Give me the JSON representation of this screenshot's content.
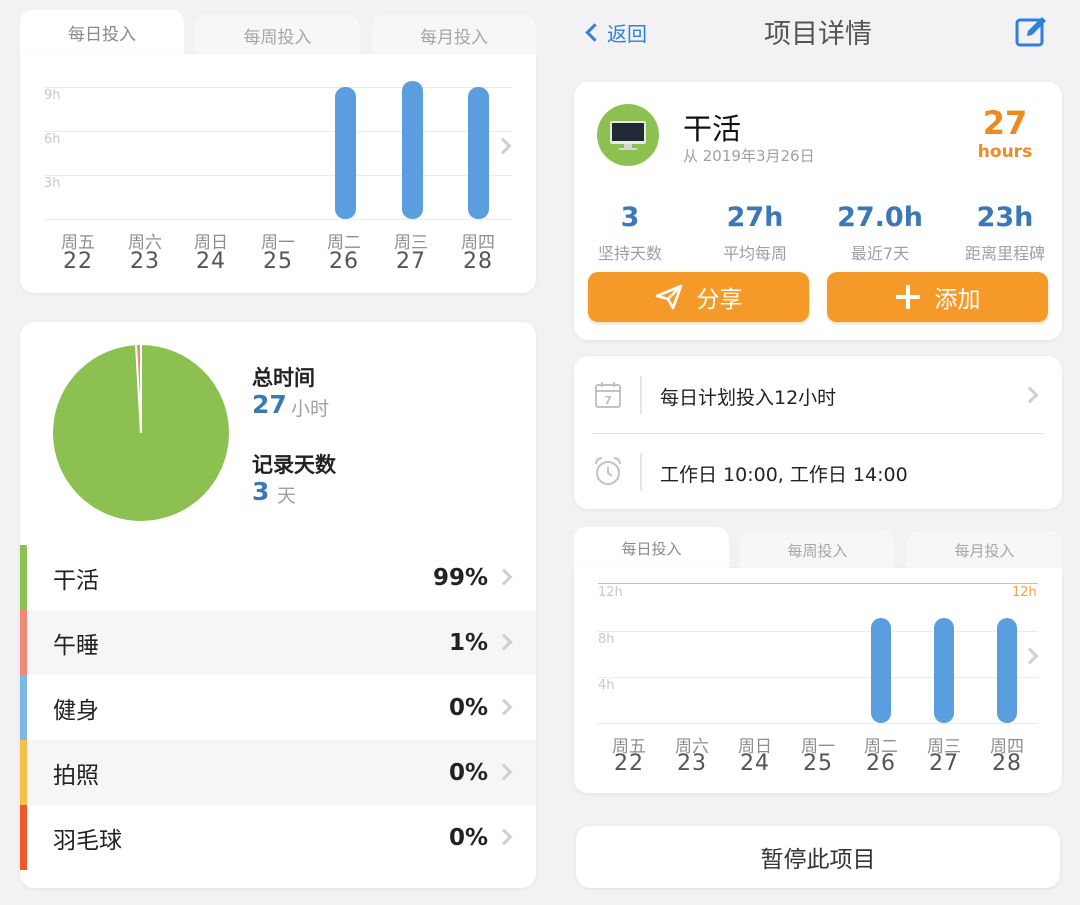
{
  "left": {
    "tabs": [
      {
        "label": "每日投入"
      },
      {
        "label": "每周投入"
      },
      {
        "label": "每月投入"
      }
    ],
    "chart": {
      "y_ticks": [
        "9h",
        "6h",
        "3h"
      ],
      "days": [
        {
          "name": "周五",
          "num": "22"
        },
        {
          "name": "周六",
          "num": "23"
        },
        {
          "name": "周日",
          "num": "24"
        },
        {
          "name": "周一",
          "num": "25"
        },
        {
          "name": "周二",
          "num": "26"
        },
        {
          "name": "周三",
          "num": "27"
        },
        {
          "name": "周四",
          "num": "28"
        }
      ]
    },
    "summary": {
      "total_label": "总时间",
      "total_value": "27",
      "total_unit": "小时",
      "days_label": "记录天数",
      "days_value": "3",
      "days_unit": "天"
    },
    "categories": [
      {
        "name": "干活",
        "pct": "99%",
        "color": "#8cc152"
      },
      {
        "name": "午睡",
        "pct": "1%",
        "color": "#f08a78"
      },
      {
        "name": "健身",
        "pct": "0%",
        "color": "#7cb8e8"
      },
      {
        "name": "拍照",
        "pct": "0%",
        "color": "#f5c04a"
      },
      {
        "name": "羽毛球",
        "pct": "0%",
        "color": "#ee5a2a"
      }
    ]
  },
  "right": {
    "nav": {
      "back_label": "返回",
      "title": "项目详情"
    },
    "project": {
      "name": "干活",
      "since": "从 2019年3月26日",
      "hours_value": "27",
      "hours_unit": "hours"
    },
    "stats": [
      {
        "value": "3",
        "label": "坚持天数"
      },
      {
        "value": "27h",
        "label": "平均每周"
      },
      {
        "value": "27.0h",
        "label": "最近7天"
      },
      {
        "value": "23h",
        "label": "距离里程碑"
      }
    ],
    "buttons": {
      "share": "分享",
      "add": "添加"
    },
    "plan": {
      "daily_plan": "每日计划投入12小时",
      "reminder": "工作日 10:00, 工作日 14:00",
      "calendar_icon_day": "7"
    },
    "tabs": [
      {
        "label": "每日投入"
      },
      {
        "label": "每周投入"
      },
      {
        "label": "每月投入"
      }
    ],
    "chart": {
      "y_ticks": [
        "12h",
        "8h",
        "4h"
      ],
      "target_label": "12h",
      "days": [
        {
          "name": "周五",
          "num": "22"
        },
        {
          "name": "周六",
          "num": "23"
        },
        {
          "name": "周日",
          "num": "24"
        },
        {
          "name": "周一",
          "num": "25"
        },
        {
          "name": "周二",
          "num": "26"
        },
        {
          "name": "周三",
          "num": "27"
        },
        {
          "name": "周四",
          "num": "28"
        }
      ]
    },
    "pause_label": "暂停此项目"
  },
  "chart_data": [
    {
      "type": "bar",
      "categories": [
        "周五 22",
        "周六 23",
        "周日 24",
        "周一 25",
        "周二 26",
        "周三 27",
        "周四 28"
      ],
      "values": [
        0,
        0,
        0,
        0,
        9,
        9.4,
        9
      ],
      "ylabel": "",
      "ylim": [
        0,
        9
      ],
      "y_unit": "h"
    },
    {
      "type": "pie",
      "categories": [
        "干活",
        "午睡"
      ],
      "values": [
        99,
        1
      ],
      "colors": [
        "#8cc152",
        "#f08a78"
      ]
    },
    {
      "type": "bar",
      "categories": [
        "周五 22",
        "周六 23",
        "周日 24",
        "周一 25",
        "周二 26",
        "周三 27",
        "周四 28"
      ],
      "values": [
        0,
        0,
        0,
        0,
        9,
        9,
        9
      ],
      "target_line": 12,
      "ylim": [
        0,
        12
      ],
      "y_unit": "h"
    }
  ]
}
